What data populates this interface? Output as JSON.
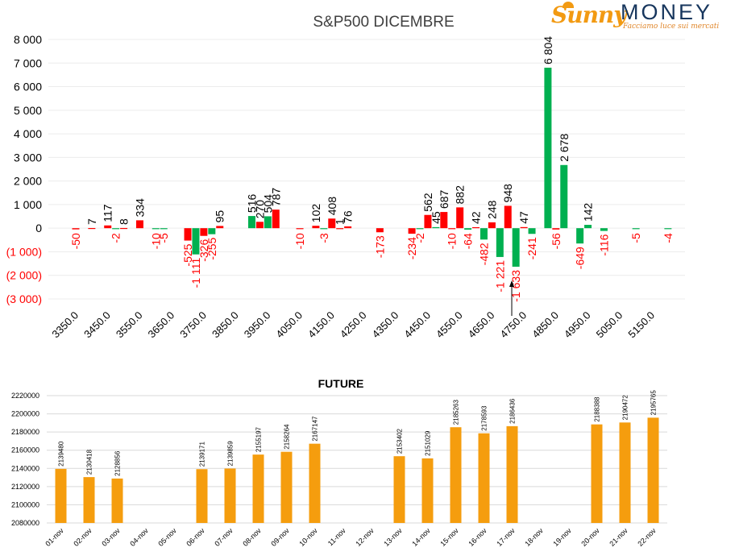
{
  "brand": {
    "name_part1": "Sunny",
    "name_part2": "MONEY",
    "tagline": "Facciamo luce sui mercati",
    "colors": {
      "sunny": "#f29a12",
      "money": "#17365d"
    }
  },
  "chart_data": [
    {
      "type": "bar",
      "title": "S&P500 DICEMBRE",
      "y_tick_labels": [
        "8 000",
        "7 000",
        "6 000",
        "5 000",
        "4 000",
        "3 000",
        "2 000",
        "1 000",
        "0",
        "(1 000)",
        "(2 000)",
        "(3 000)"
      ],
      "x_tick_labels": [
        "3350.0",
        "3450.0",
        "3550.0",
        "3650.0",
        "3750.0",
        "3850.0",
        "3950.0",
        "4050.0",
        "4150.0",
        "4250.0",
        "4350.0",
        "4450.0",
        "4550.0",
        "4650.0",
        "4750.0",
        "4850.0",
        "4950.0",
        "5050.0",
        "5150.0"
      ],
      "ylim": [
        -3000,
        8000
      ],
      "grid": true,
      "colors": {
        "positive_green": "#00b050",
        "positive_red": "#ff0000",
        "negative_label": "#ff0000"
      },
      "bars": [
        {
          "x": 3350,
          "v": -50,
          "c": "red"
        },
        {
          "x": 3400,
          "v": 7,
          "c": "red"
        },
        {
          "x": 3450,
          "v": 117,
          "c": "red"
        },
        {
          "x": 3475,
          "v": -2,
          "c": "green"
        },
        {
          "x": 3500,
          "v": 8,
          "c": "red"
        },
        {
          "x": 3550,
          "v": 334,
          "c": "red"
        },
        {
          "x": 3600,
          "v": -10,
          "c": "green"
        },
        {
          "x": 3625,
          "v": -5,
          "c": "green"
        },
        {
          "x": 3700,
          "v": -525,
          "c": "red"
        },
        {
          "x": 3725,
          "v": -1111,
          "c": "green"
        },
        {
          "x": 3750,
          "v": -326,
          "c": "red"
        },
        {
          "x": 3775,
          "v": -255,
          "c": "green"
        },
        {
          "x": 3800,
          "v": 95,
          "c": "red"
        },
        {
          "x": 3900,
          "v": 516,
          "c": "green"
        },
        {
          "x": 3925,
          "v": 270,
          "c": "red"
        },
        {
          "x": 3950,
          "v": 504,
          "c": "green"
        },
        {
          "x": 3975,
          "v": 787,
          "c": "red"
        },
        {
          "x": 4050,
          "v": -10,
          "c": "red"
        },
        {
          "x": 4100,
          "v": 102,
          "c": "red"
        },
        {
          "x": 4125,
          "v": -3,
          "c": "green"
        },
        {
          "x": 4150,
          "v": 408,
          "c": "red"
        },
        {
          "x": 4175,
          "v": 1,
          "c": "red"
        },
        {
          "x": 4200,
          "v": 76,
          "c": "red"
        },
        {
          "x": 4300,
          "v": -173,
          "c": "red"
        },
        {
          "x": 4400,
          "v": -234,
          "c": "red"
        },
        {
          "x": 4425,
          "v": -2,
          "c": "green"
        },
        {
          "x": 4450,
          "v": 562,
          "c": "red"
        },
        {
          "x": 4475,
          "v": 45,
          "c": "green"
        },
        {
          "x": 4500,
          "v": 687,
          "c": "red"
        },
        {
          "x": 4525,
          "v": -10,
          "c": "red"
        },
        {
          "x": 4550,
          "v": 882,
          "c": "red"
        },
        {
          "x": 4575,
          "v": -64,
          "c": "green"
        },
        {
          "x": 4600,
          "v": 42,
          "c": "red"
        },
        {
          "x": 4625,
          "v": -482,
          "c": "green"
        },
        {
          "x": 4650,
          "v": 248,
          "c": "red"
        },
        {
          "x": 4675,
          "v": -1221,
          "c": "green"
        },
        {
          "x": 4700,
          "v": 948,
          "c": "red"
        },
        {
          "x": 4725,
          "v": -1633,
          "c": "green"
        },
        {
          "x": 4750,
          "v": 47,
          "c": "red"
        },
        {
          "x": 4775,
          "v": -241,
          "c": "green"
        },
        {
          "x": 4825,
          "v": 6804,
          "c": "green"
        },
        {
          "x": 4850,
          "v": -56,
          "c": "red"
        },
        {
          "x": 4875,
          "v": 2678,
          "c": "green"
        },
        {
          "x": 4925,
          "v": -649,
          "c": "green"
        },
        {
          "x": 4950,
          "v": 142,
          "c": "green"
        },
        {
          "x": 5000,
          "v": -116,
          "c": "green"
        },
        {
          "x": 5100,
          "v": -5,
          "c": "green"
        },
        {
          "x": 5200,
          "v": -4,
          "c": "green"
        }
      ],
      "value_labels": [
        "-50",
        "7",
        "117",
        "-2",
        "8",
        "334",
        "-10",
        "-5",
        "-525",
        "-1 111",
        "-326",
        "-255",
        "95",
        "516",
        "270",
        "504",
        "787",
        "-10",
        "102",
        "-3",
        "408",
        "1",
        "76",
        "-173",
        "-234",
        "-2",
        "562",
        "45",
        "687",
        "-10",
        "882",
        "-64",
        "42",
        "-482",
        "248",
        "-1 221",
        "948",
        "-1 633",
        "47",
        "-241",
        "6 804",
        "-56",
        "2 678",
        "-649",
        "142",
        "-116",
        "-5",
        "-4"
      ]
    },
    {
      "type": "bar",
      "title": "FUTURE",
      "categories": [
        "01-nov",
        "02-nov",
        "03-nov",
        "04-nov",
        "05-nov",
        "06-nov",
        "07-nov",
        "08-nov",
        "09-nov",
        "10-nov",
        "11-nov",
        "12-nov",
        "13-nov",
        "14-nov",
        "15-nov",
        "16-nov",
        "17-nov",
        "18-nov",
        "19-nov",
        "20-nov",
        "21-nov",
        "22-nov"
      ],
      "values": [
        2139480,
        2130418,
        2128856,
        null,
        null,
        2139171,
        2139859,
        2155197,
        2158264,
        2167147,
        null,
        null,
        2153402,
        2151029,
        2185263,
        2178593,
        2186436,
        null,
        null,
        2188388,
        2190472,
        2195765
      ],
      "value_labels": [
        "2139480",
        "2130418",
        "2128856",
        "",
        "",
        "2139171",
        "2139859",
        "2155197",
        "2158264",
        "2167147",
        "",
        "",
        "2153402",
        "2151029",
        "2185263",
        "2178593",
        "2186436",
        "",
        "",
        "2188388",
        "2190472",
        "2195765"
      ],
      "ylim": [
        2080000,
        2220000
      ],
      "y_tick_labels": [
        "2220000",
        "2200000",
        "2180000",
        "2160000",
        "2140000",
        "2120000",
        "2100000",
        "2080000"
      ],
      "grid": true,
      "color": "#f59d0e"
    }
  ]
}
